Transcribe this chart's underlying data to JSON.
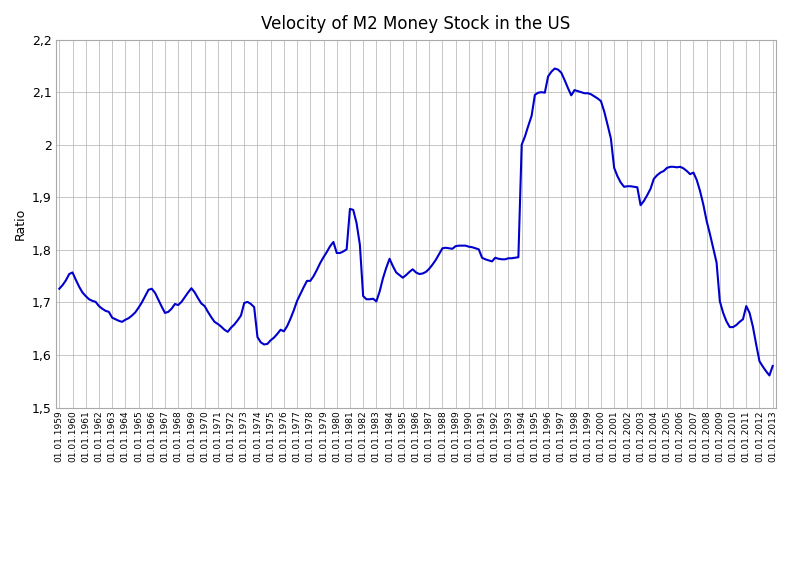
{
  "title": "Velocity of M2 Money Stock in the US",
  "ylabel": "Ratio",
  "line_color": "#0000CC",
  "line_width": 1.5,
  "background_color": "#ffffff",
  "ylim": [
    1.5,
    2.2
  ],
  "yticks": [
    1.5,
    1.6,
    1.7,
    1.8,
    1.9,
    2.0,
    2.1,
    2.2
  ],
  "ytick_labels": [
    "1,5",
    "1,6",
    "1,7",
    "1,8",
    "1,9",
    "2",
    "2,1",
    "2,2"
  ],
  "xtick_years": [
    1959,
    1960,
    1961,
    1962,
    1963,
    1964,
    1965,
    1966,
    1967,
    1968,
    1969,
    1970,
    1971,
    1972,
    1973,
    1974,
    1975,
    1976,
    1977,
    1978,
    1979,
    1980,
    1981,
    1982,
    1983,
    1984,
    1985,
    1986,
    1987,
    1988,
    1989,
    1990,
    1991,
    1992,
    1993,
    1994,
    1995,
    1996,
    1997,
    1998,
    1999,
    2000,
    2001,
    2002,
    2003,
    2004,
    2005,
    2006,
    2007,
    2008,
    2009,
    2010,
    2011,
    2012,
    2013
  ],
  "values": [
    1.726,
    1.733,
    1.742,
    1.754,
    1.757,
    1.743,
    1.73,
    1.719,
    1.712,
    1.706,
    1.703,
    1.701,
    1.693,
    1.688,
    1.684,
    1.682,
    1.671,
    1.668,
    1.665,
    1.663,
    1.667,
    1.67,
    1.675,
    1.681,
    1.69,
    1.7,
    1.712,
    1.724,
    1.726,
    1.718,
    1.705,
    1.692,
    1.68,
    1.682,
    1.688,
    1.697,
    1.695,
    1.701,
    1.71,
    1.719,
    1.727,
    1.719,
    1.708,
    1.698,
    1.693,
    1.682,
    1.672,
    1.663,
    1.659,
    1.654,
    1.648,
    1.644,
    1.652,
    1.658,
    1.666,
    1.675,
    1.699,
    1.701,
    1.697,
    1.691,
    1.634,
    1.624,
    1.62,
    1.621,
    1.628,
    1.633,
    1.64,
    1.648,
    1.645,
    1.655,
    1.669,
    1.685,
    1.703,
    1.716,
    1.729,
    1.741,
    1.741,
    1.75,
    1.762,
    1.775,
    1.786,
    1.796,
    1.807,
    1.815,
    1.794,
    1.794,
    1.797,
    1.801,
    1.878,
    1.876,
    1.851,
    1.81,
    1.712,
    1.706,
    1.706,
    1.707,
    1.702,
    1.721,
    1.746,
    1.766,
    1.783,
    1.769,
    1.757,
    1.752,
    1.747,
    1.752,
    1.758,
    1.763,
    1.757,
    1.754,
    1.755,
    1.758,
    1.764,
    1.772,
    1.781,
    1.792,
    1.803,
    1.804,
    1.803,
    1.802,
    1.807,
    1.808,
    1.808,
    1.808,
    1.806,
    1.805,
    1.803,
    1.801,
    1.785,
    1.782,
    1.78,
    1.778,
    1.785,
    1.783,
    1.782,
    1.782,
    1.784,
    1.784,
    1.785,
    1.786,
    2.0,
    2.016,
    2.036,
    2.055,
    2.095,
    2.099,
    2.1,
    2.099,
    2.13,
    2.139,
    2.145,
    2.143,
    2.137,
    2.123,
    2.108,
    2.094,
    2.104,
    2.102,
    2.1,
    2.098,
    2.098,
    2.096,
    2.092,
    2.088,
    2.083,
    2.063,
    2.038,
    2.012,
    1.956,
    1.94,
    1.928,
    1.92,
    1.921,
    1.921,
    1.92,
    1.919,
    1.885,
    1.893,
    1.904,
    1.916,
    1.935,
    1.942,
    1.947,
    1.95,
    1.956,
    1.958,
    1.958,
    1.957,
    1.958,
    1.955,
    1.95,
    1.944,
    1.947,
    1.933,
    1.912,
    1.886,
    1.855,
    1.83,
    1.803,
    1.776,
    1.702,
    1.68,
    1.664,
    1.653,
    1.653,
    1.657,
    1.663,
    1.668,
    1.693,
    1.68,
    1.654,
    1.62,
    1.588,
    1.578,
    1.569,
    1.561,
    1.579
  ]
}
